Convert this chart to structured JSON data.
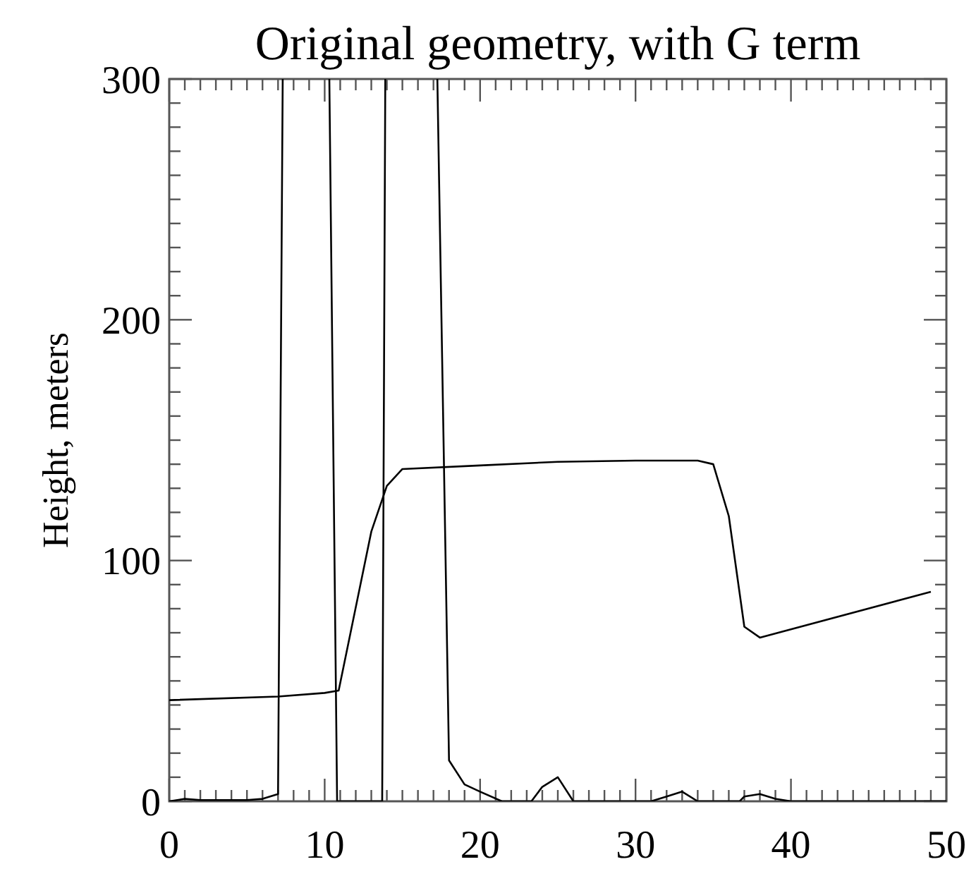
{
  "chart_data": {
    "type": "line",
    "title": "Original geometry, with G term",
    "ylabel": "Height, meters",
    "xlim": [
      0,
      50
    ],
    "ylim": [
      0,
      300
    ],
    "xticks": [
      0,
      {
        "value": 1,
        "label": null
      },
      {
        "value": 2,
        "label": null
      },
      {
        "value": 3,
        "label": null
      },
      {
        "value": 4,
        "label": null
      },
      {
        "value": 5,
        "label": null
      },
      {
        "value": 6,
        "label": null
      },
      {
        "value": 7,
        "label": null
      },
      {
        "value": 8,
        "label": null
      },
      {
        "value": 9,
        "label": null
      },
      10,
      {
        "value": 11,
        "label": null
      },
      {
        "value": 12,
        "label": null
      },
      {
        "value": 13,
        "label": null
      },
      {
        "value": 14,
        "label": null
      },
      {
        "value": 15,
        "label": null
      },
      {
        "value": 16,
        "label": null
      },
      {
        "value": 17,
        "label": null
      },
      {
        "value": 18,
        "label": null
      },
      {
        "value": 19,
        "label": null
      },
      20,
      {
        "value": 21,
        "label": null
      },
      {
        "value": 22,
        "label": null
      },
      {
        "value": 23,
        "label": null
      },
      {
        "value": 24,
        "label": null
      },
      {
        "value": 25,
        "label": null
      },
      {
        "value": 26,
        "label": null
      },
      {
        "value": 27,
        "label": null
      },
      {
        "value": 28,
        "label": null
      },
      {
        "value": 29,
        "label": null
      },
      30,
      {
        "value": 31,
        "label": null
      },
      {
        "value": 32,
        "label": null
      },
      {
        "value": 33,
        "label": null
      },
      {
        "value": 34,
        "label": null
      },
      {
        "value": 35,
        "label": null
      },
      {
        "value": 36,
        "label": null
      },
      {
        "value": 37,
        "label": null
      },
      {
        "value": 38,
        "label": null
      },
      {
        "value": 39,
        "label": null
      },
      40,
      {
        "value": 41,
        "label": null
      },
      {
        "value": 42,
        "label": null
      },
      {
        "value": 43,
        "label": null
      },
      {
        "value": 44,
        "label": null
      },
      {
        "value": 45,
        "label": null
      },
      {
        "value": 46,
        "label": null
      },
      {
        "value": 47,
        "label": null
      },
      {
        "value": 48,
        "label": null
      },
      {
        "value": 49,
        "label": null
      },
      50
    ],
    "yticks": [
      0,
      {
        "value": 10,
        "label": null
      },
      {
        "value": 20,
        "label": null
      },
      {
        "value": 30,
        "label": null
      },
      {
        "value": 40,
        "label": null
      },
      {
        "value": 50,
        "label": null
      },
      {
        "value": 60,
        "label": null
      },
      {
        "value": 70,
        "label": null
      },
      {
        "value": 80,
        "label": null
      },
      {
        "value": 90,
        "label": null
      },
      100,
      {
        "value": 110,
        "label": null
      },
      {
        "value": 120,
        "label": null
      },
      {
        "value": 130,
        "label": null
      },
      {
        "value": 140,
        "label": null
      },
      {
        "value": 150,
        "label": null
      },
      {
        "value": 160,
        "label": null
      },
      {
        "value": 170,
        "label": null
      },
      {
        "value": 180,
        "label": null
      },
      {
        "value": 190,
        "label": null
      },
      200,
      {
        "value": 210,
        "label": null
      },
      {
        "value": 220,
        "label": null
      },
      {
        "value": 230,
        "label": null
      },
      {
        "value": 240,
        "label": null
      },
      {
        "value": 250,
        "label": null
      },
      {
        "value": 260,
        "label": null
      },
      {
        "value": 270,
        "label": null
      },
      {
        "value": 280,
        "label": null
      },
      {
        "value": 290,
        "label": null
      },
      300
    ],
    "series": [
      {
        "color": "#000000",
        "x": [
          0,
          7,
          10,
          10.9,
          13,
          14,
          15,
          20,
          25,
          30,
          34,
          35,
          36,
          37,
          38,
          49
        ],
        "values": [
          42,
          43.5,
          45,
          46,
          112,
          131,
          138,
          139.5,
          141,
          141.5,
          141.5,
          140,
          118.5,
          72.5,
          68,
          87
        ]
      },
      {
        "color": "#000000",
        "x": [
          0,
          1,
          2,
          3,
          4,
          5,
          6,
          7,
          7.3,
          8.5,
          10.3,
          10.8,
          13.7,
          13.9,
          15.5,
          17.25,
          18,
          19,
          20,
          21.4,
          23.3,
          24,
          25,
          26,
          31,
          32,
          33,
          34,
          36.7,
          37,
          38,
          39,
          40,
          50
        ],
        "values": [
          0,
          1,
          0.5,
          0.5,
          0.5,
          0.5,
          1,
          3,
          300,
          null,
          300,
          0,
          0,
          300,
          null,
          300,
          17,
          7,
          4,
          0,
          0,
          6,
          10,
          0,
          0,
          2,
          4,
          0,
          0,
          2,
          3,
          1,
          0,
          0
        ]
      }
    ]
  }
}
